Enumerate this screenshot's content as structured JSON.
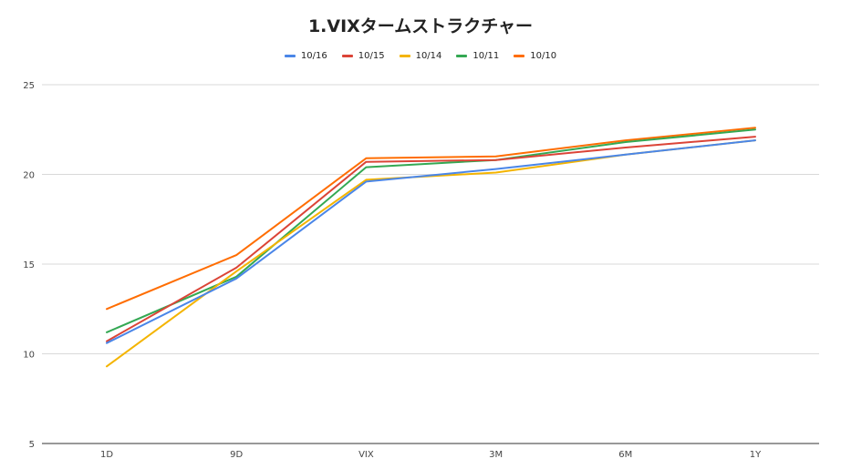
{
  "chart_data": {
    "type": "line",
    "title": "1.VIXタームストラクチャー",
    "categories": [
      "1D",
      "9D",
      "VIX",
      "3M",
      "6M",
      "1Y"
    ],
    "ylim": [
      5,
      25
    ],
    "yticks": [
      5,
      10,
      15,
      20,
      25
    ],
    "grid": true,
    "legend_position": "top",
    "series": [
      {
        "name": "10/16",
        "color": "#4a86e8",
        "values": [
          10.6,
          14.2,
          19.6,
          20.3,
          21.1,
          21.9
        ]
      },
      {
        "name": "10/15",
        "color": "#db4437",
        "values": [
          10.7,
          14.8,
          20.7,
          20.8,
          21.5,
          22.1
        ]
      },
      {
        "name": "10/14",
        "color": "#f4b400",
        "values": [
          9.3,
          14.6,
          19.7,
          20.1,
          21.1,
          21.9
        ]
      },
      {
        "name": "10/11",
        "color": "#34a853",
        "values": [
          11.2,
          14.3,
          20.4,
          20.8,
          21.8,
          22.5
        ]
      },
      {
        "name": "10/10",
        "color": "#ff6d01",
        "values": [
          12.5,
          15.5,
          20.9,
          21.0,
          21.9,
          22.6
        ]
      }
    ]
  }
}
